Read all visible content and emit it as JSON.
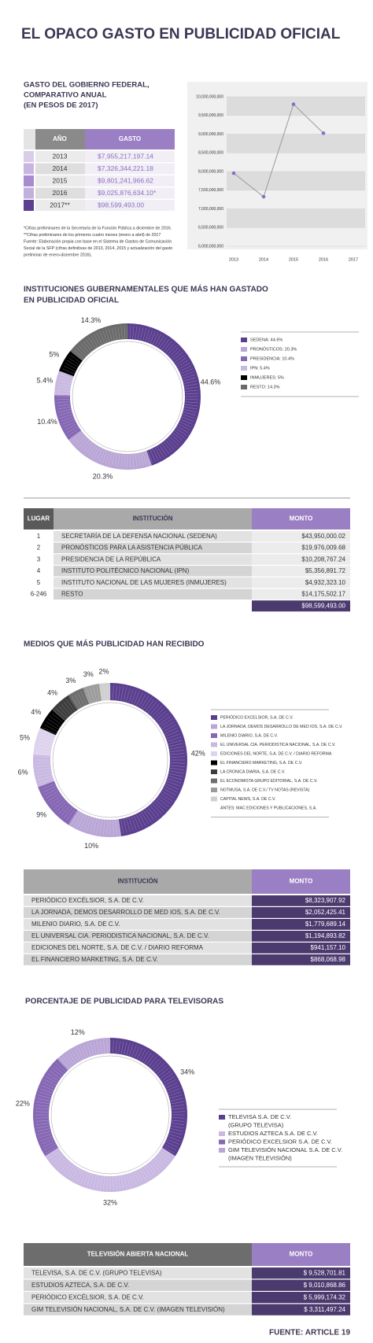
{
  "title": "EL OPACO GASTO EN PUBLICIDAD OFICIAL",
  "spend_table": {
    "title": [
      "GASTO DEL GOBIERNO FEDERAL,",
      "COMPARATIVO ANUAL",
      "(EN PESOS DE 2017)"
    ],
    "headers": [
      "AÑO",
      "GASTO"
    ],
    "rows": [
      [
        "2013",
        "$7,955,217,197.14"
      ],
      [
        "2014",
        "$7,326,344,221.18"
      ],
      [
        "2015",
        "$9,801,241,966.62"
      ],
      [
        "2016",
        "$9,025,876,634.10*"
      ],
      [
        "2017**",
        "$98,599,493.00"
      ]
    ],
    "notes": [
      "*Cifras preliminares de la Secretaría de la Función Pública a diciembre de 2016.",
      "**Cifras preliminares de los primeros cuatro meses (enero a abril) de 2017",
      "Fuente: Elaboración propia con base en el Sistema de Gastos de Comunicación",
      "Social de la SFP (cifras definitivas de 2013, 2014, 2015 y actualización del gasto",
      "preliminar de enero-diciembre 2016)."
    ]
  },
  "chart_data": [
    {
      "type": "line",
      "categories": [
        "2013",
        "2014",
        "2015",
        "2016",
        "2017"
      ],
      "values": [
        7955217197.14,
        7326344221.18,
        9801241966.62,
        9025876634.1,
        null
      ],
      "color": "#8e6cc0",
      "line_color": "#9a9a9a",
      "ylim": [
        6000000000,
        10000000000
      ],
      "yticks": [
        {
          "value": 6000000000,
          "label": "6,000,000,000"
        },
        {
          "value": 6500000000,
          "label": "6,500,000,000"
        },
        {
          "value": 7000000000,
          "label": "7,000,000,000"
        },
        {
          "value": 7500000000,
          "label": "7,500,000,000"
        },
        {
          "value": 8000000000,
          "label": "8,000,000,000"
        },
        {
          "value": 8500000000,
          "label": "8,500,000,000"
        },
        {
          "value": 9000000000,
          "label": "9,000,000,000"
        },
        {
          "value": 9500000000,
          "label": "9,500,000,000"
        },
        {
          "value": 10000000000,
          "label": "10,000,000,000"
        }
      ]
    },
    {
      "type": "pie",
      "title": [
        "INSTITUCIONES GUBERNAMENTALES QUE MÁS HAN GASTADO",
        "EN PUBLICIDAD OFICIAL"
      ],
      "categories": [
        "SEDENA: 44.6%",
        "PRONÓSTICOS: 20.3%",
        "PRESIDENCIA: 10.4%",
        "IPN: 5.4%",
        "INMUJERES: 5%",
        "RESTO: 14.3%"
      ],
      "values": [
        44.6,
        20.3,
        10.4,
        5.4,
        5,
        14.3
      ],
      "value_labels": [
        "44.6%",
        "20.3%",
        "10.4%",
        "5.4%",
        "5%",
        "14.3%"
      ],
      "colors": [
        "#5b3f8f",
        "#b9a6d6",
        "#8567b4",
        "#c9b9e2",
        "#000000",
        "#6a6a6a"
      ]
    },
    {
      "type": "pie",
      "title": [
        "MEDIOS QUE MÁS PUBLICIDAD HAN RECIBIDO"
      ],
      "categories": [
        "PERIÓDICO EXCELSIOR, S.A. DE C.V.",
        "LA JORNADA, DEMOS DESARROLLO DE MED IOS, S.A. DE C.V.",
        "MILENIO DIARIO, S.A. DE C.V.",
        "EL UNIVERSAL CIA. PERIODISTICA NACIONAL, S.A. DE C.V.",
        "EDICIONES DEL NORTE, S.A. DE C.V. / DIARIO REFORMA",
        "EL FINANCIERO MARKETING, S.A. DE C.V.",
        "LA CRONICA DIARIA, S.A. DE C.V.",
        "EL ECONOMISTA GRUPO EDITORIAL, S.A. DE C.V.",
        "NOTMUSA, S.A. DE C.V./ TV NOTAS (REVISTA)",
        "CAPITAL NEWS, S.A. DE C.V."
      ],
      "legend_note": "ANTES: MAC EDICIONES Y PUBLICACIONES, S.A.",
      "values": [
        42,
        10,
        9,
        6,
        5,
        4,
        4,
        3,
        3,
        2
      ],
      "value_labels": [
        "42%",
        "10%",
        "9%",
        "6%",
        "5%",
        "4%",
        "4%",
        "3%",
        "3%",
        "2%"
      ],
      "colors": [
        "#5b3f8f",
        "#b9a6d6",
        "#8567b4",
        "#c9b9e2",
        "#ddd3ec",
        "#000000",
        "#3d3d3d",
        "#6e6e6e",
        "#9c9c9c",
        "#cfcfcf"
      ]
    },
    {
      "type": "pie",
      "title": [
        "PORCENTAJE DE PUBLICIDAD PARA TELEVISORAS"
      ],
      "categories": [
        [
          "TELEVISA S.A. DE C.V.",
          "(GRUPO TELEVISA)"
        ],
        [
          "ESTUDIOS AZTECA S.A. DE C.V."
        ],
        [
          "PERIÓDICO EXCELSIOR S.A. DE C.V."
        ],
        [
          "GIM TELEVISIÓN NACIONAL S.A. DE C.V.",
          "(IMAGEN TELEVISIÓN)"
        ]
      ],
      "values": [
        34,
        32,
        22,
        12
      ],
      "value_labels": [
        "34%",
        "32%",
        "22%",
        "12%"
      ],
      "colors": [
        "#5b3f8f",
        "#c9b9e2",
        "#8567b4",
        "#b9a6d6"
      ]
    }
  ],
  "institutions_table": {
    "headers": [
      "LUGAR",
      "INSTITUCIÓN",
      "MONTO"
    ],
    "rows": [
      [
        "1",
        "SECRETARÍA DE LA DEFENSA NACIONAL (SEDENA)",
        "$43,950,000.02"
      ],
      [
        "2",
        "PRONÓSTICOS PARA LA ASISTENCIA PÚBLICA",
        "$19,976,009.68"
      ],
      [
        "3",
        "PRESIDENCIA DE LA REPÚBLICA",
        "$10,208,767.24"
      ],
      [
        "4",
        "INSTITUTO POLITÉCNICO NACIONAL (IPN)",
        "$5,356,891.72"
      ],
      [
        "5",
        "INSTITUTO NACIONAL DE LAS MUJERES (INMUJERES)",
        "$4,932,323.10"
      ],
      [
        "6-246",
        "RESTO",
        "$14,175,502.17"
      ]
    ],
    "total": "$98,599,493.00"
  },
  "media_table": {
    "headers": [
      "INSTITUCIÓN",
      "MONTO"
    ],
    "rows": [
      [
        "PERIÓDICO EXCÉLSIOR, S.A. DE C.V.",
        "$8,323,907.92"
      ],
      [
        "LA JORNADA, DEMOS DESARROLLO DE MED IOS, S.A. DE C.V.",
        "$2,052,425.41"
      ],
      [
        "MILENIO DIARIO, S.A. DE C.V.",
        "$1,779,689.14"
      ],
      [
        "EL UNIVERSAL CIA. PERIODISTICA NACIONAL, S.A. DE C.V.",
        "$1,194,893.82"
      ],
      [
        "EDICIONES DEL NORTE, S.A. DE C.V. / DIARIO REFORMA",
        "$941,157.10"
      ],
      [
        "EL FINANCIERO MARKETING, S.A. DE C.V.",
        "$868,068.98"
      ]
    ]
  },
  "tv_table": {
    "headers": [
      "TELEVISIÓN ABIERTA NACIONAL",
      "MONTO"
    ],
    "rows": [
      [
        "TELEVISA, S.A. DE C.V. (GRUPO TELEVISA)",
        "$ 9,528,701.81"
      ],
      [
        "ESTUDIOS AZTECA, S.A. DE C.V.",
        "$ 9,010,868.86"
      ],
      [
        "PERIÓDICO EXCÉLSIOR, S.A. DE C.V.",
        "$ 5,999,174.32"
      ],
      [
        "GIM TELEVISIÓN NACIONAL, S.A. DE C.V.  (IMAGEN TELEVISIÓN)",
        "$ 3,311,497.24"
      ]
    ]
  },
  "source": "FUENTE: ARTICLE 19"
}
